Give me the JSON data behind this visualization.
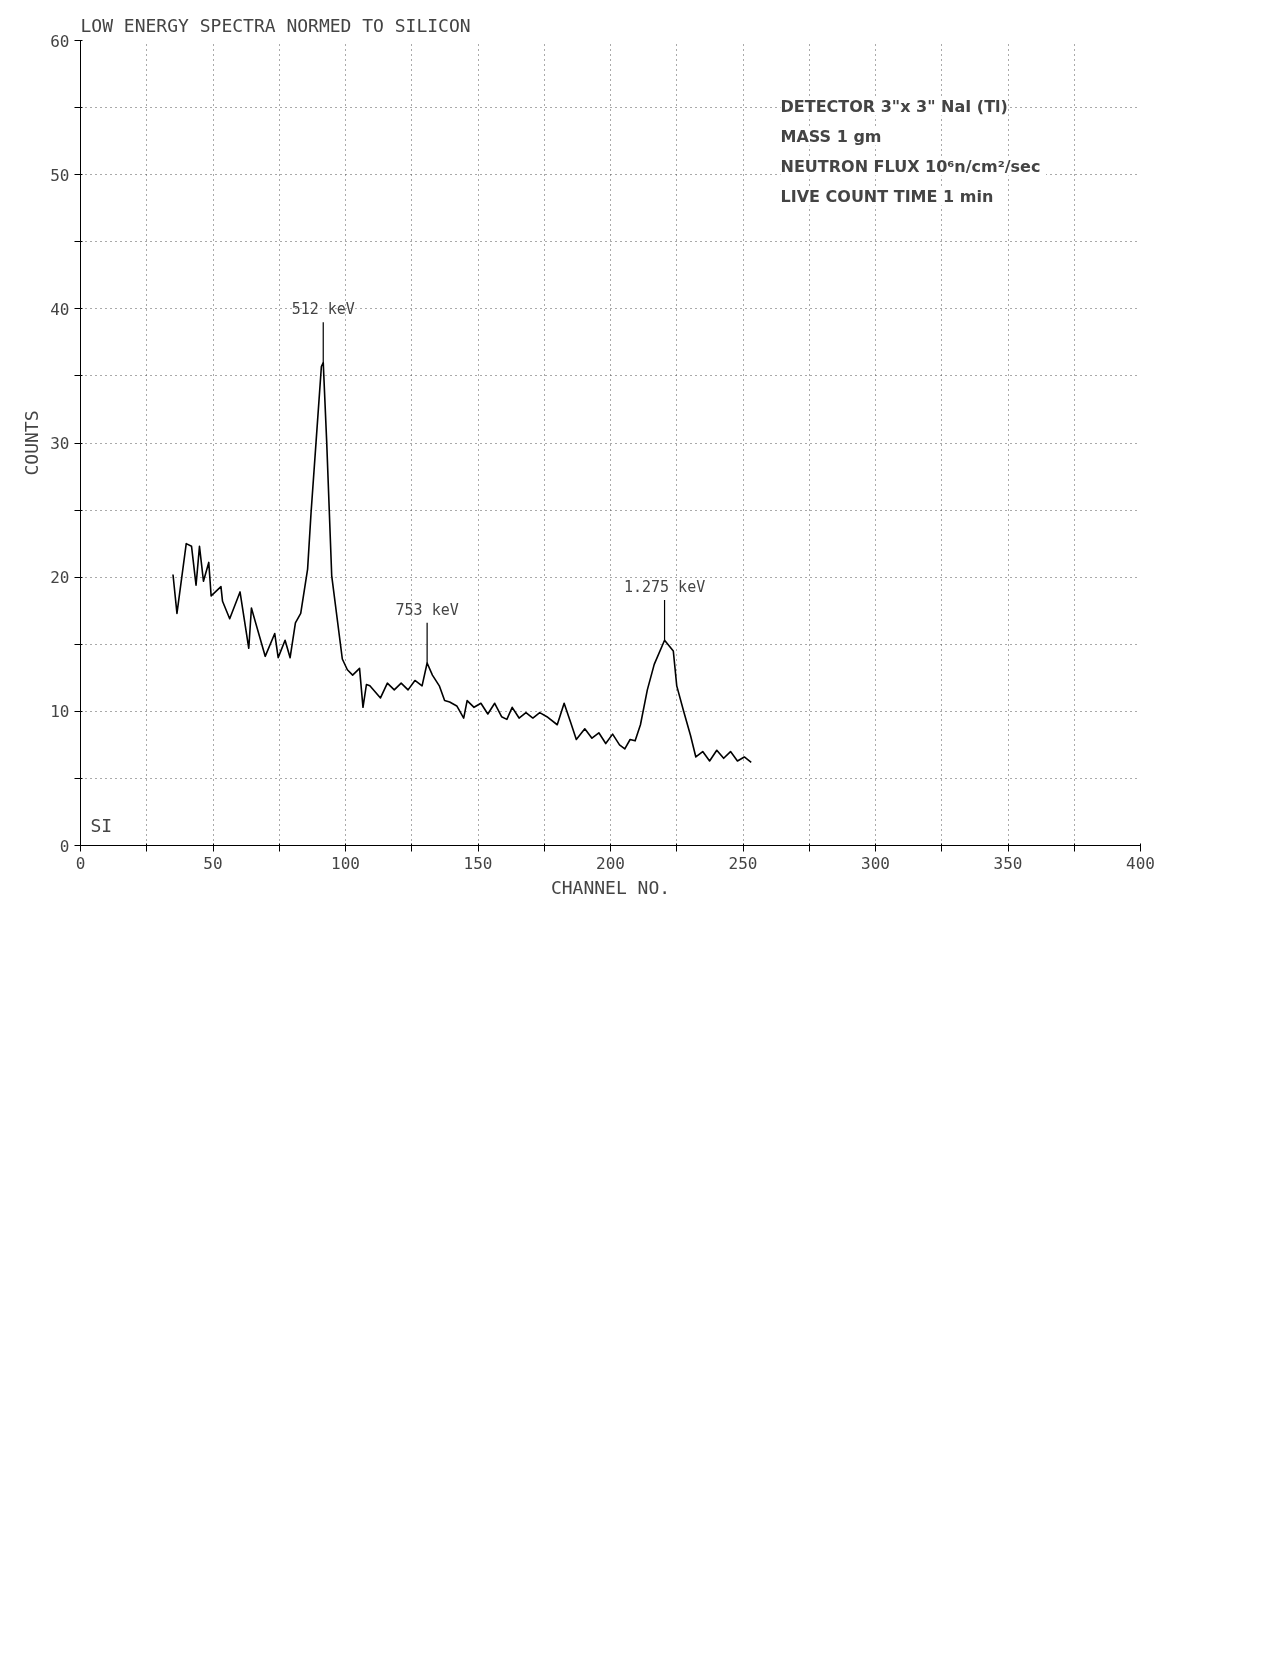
{
  "chart_data": {
    "type": "line",
    "title": "LOW ENERGY SPECTRA  NORMED TO SILICON",
    "xlabel": "CHANNEL NO.",
    "ylabel": "COUNTS",
    "x": [
      34.9,
      36.4,
      39.9,
      41.9,
      43.6,
      44.9,
      46.4,
      48.4,
      49.3,
      53.0,
      53.6,
      56.3,
      60.2,
      63.5,
      64.5,
      69.7,
      73.3,
      74.6,
      77.2,
      79.1,
      81.1,
      83.1,
      85.7,
      87.0,
      88.9,
      90.9,
      91.6,
      92.9,
      94.8,
      98.8,
      100.7,
      102.7,
      105.3,
      106.6,
      107.9,
      109.2,
      113.2,
      115.8,
      118.4,
      121.0,
      123.6,
      126.2,
      128.9,
      130.8,
      132.8,
      135.4,
      137.4,
      139.3,
      142.0,
      144.6,
      145.9,
      148.5,
      151.1,
      153.7,
      156.3,
      158.9,
      160.9,
      162.9,
      165.5,
      168.1,
      170.7,
      173.3,
      176.0,
      179.9,
      182.5,
      185.1,
      187.1,
      190.3,
      193.0,
      195.6,
      198.2,
      200.8,
      203.4,
      205.4,
      207.4,
      209.3,
      211.3,
      213.9,
      216.5,
      220.4,
      223.7,
      225.0,
      227.6,
      230.2,
      232.2,
      234.8,
      237.4,
      240.1,
      242.7,
      245.3,
      247.9,
      250.5,
      253.1
    ],
    "series": [
      {
        "color": "#000000",
        "values": [
          20.2,
          17.3,
          22.5,
          22.3,
          19.4,
          22.3,
          19.7,
          21.1,
          18.6,
          19.3,
          18.2,
          16.9,
          18.9,
          14.7,
          17.7,
          14.1,
          15.8,
          14.0,
          15.3,
          14.0,
          16.6,
          17.3,
          20.6,
          24.8,
          30.1,
          35.7,
          36.0,
          30.1,
          20.1,
          13.9,
          13.1,
          12.7,
          13.2,
          10.3,
          12.0,
          11.9,
          11.0,
          12.1,
          11.6,
          12.1,
          11.6,
          12.3,
          11.9,
          13.6,
          12.7,
          11.9,
          10.8,
          10.7,
          10.4,
          9.5,
          10.8,
          10.3,
          10.6,
          9.8,
          10.6,
          9.6,
          9.4,
          10.3,
          9.5,
          9.9,
          9.5,
          9.9,
          9.6,
          9.0,
          10.6,
          9.1,
          7.9,
          8.7,
          8.0,
          8.4,
          7.6,
          8.3,
          7.5,
          7.2,
          7.9,
          7.8,
          9.0,
          11.6,
          13.5,
          15.3,
          14.5,
          11.9,
          10.0,
          8.2,
          6.6,
          7.0,
          6.3,
          7.1,
          6.5,
          7.0,
          6.3,
          6.6,
          6.2
        ]
      }
    ],
    "xlim": [
      0,
      400
    ],
    "xticks": [
      0,
      {
        "value": 25,
        "label": null
      },
      50,
      {
        "value": 75,
        "label": null
      },
      100,
      {
        "value": 125,
        "label": null
      },
      150,
      {
        "value": 175,
        "label": null
      },
      200,
      {
        "value": 225,
        "label": null
      },
      250,
      {
        "value": 275,
        "label": null
      },
      300,
      {
        "value": 325,
        "label": null
      },
      350,
      {
        "value": 375,
        "label": null
      },
      400
    ],
    "ylim": [
      0,
      60
    ],
    "yticks": [
      0,
      {
        "value": 5,
        "label": null
      },
      10,
      {
        "value": 15,
        "label": null
      },
      20,
      {
        "value": 25,
        "label": null
      },
      30,
      {
        "value": 35,
        "label": null
      },
      40,
      {
        "value": 45,
        "label": null
      },
      50,
      {
        "value": 55,
        "label": null
      },
      60
    ],
    "grid": true,
    "marker": "none",
    "line_style": "solid",
    "annotations": [
      {
        "text": "512 keV",
        "x": 91.6,
        "y": 36.0
      },
      {
        "text": "753 keV",
        "x": 130.8,
        "y": 13.6
      },
      {
        "text": "1.275 keV",
        "x": 220.4,
        "y": 15.3
      },
      "SI",
      "DETECTOR 3\"x 3\" NaI (Tl)",
      "MASS  1 gm",
      "NEUTRON FLUX  10⁶n/cm²/sec",
      "LIVE COUNT TIME  1 min"
    ]
  }
}
